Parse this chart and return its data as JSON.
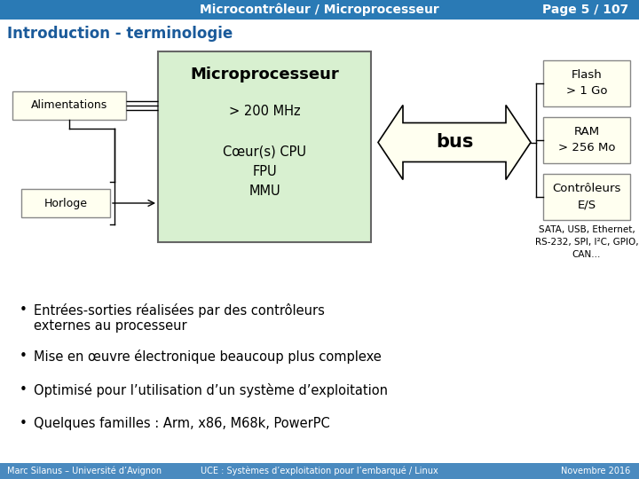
{
  "title": "Microcontrôleur / Microprocesseur",
  "page": "Page 5 / 107",
  "section": "Introduction - terminologie",
  "header_bg": "#2a7ab5",
  "header_fg": "#ffffff",
  "bg_color": "#ffffff",
  "footer_bg": "#4a8abf",
  "footer_fg": "#ffffff",
  "footer_left": "Marc Silanus – Université d’Avignon",
  "footer_mid": "UCE : Systèmes d’exploitation pour l’embarqué / Linux",
  "footer_right": "Novembre 2016",
  "micro_box_color": "#d8f0d0",
  "micro_box_edge": "#666666",
  "micro_title": "Microprocesseur",
  "alim_label": "Alimentations",
  "horloge_label": "Horloge",
  "bus_label": "bus",
  "flash_label": "Flash\n> 1 Go",
  "ram_label": "RAM\n> 256 Mo",
  "ctrl_label": "Contrôleurs\nE/S",
  "side_note": "SATA, USB, Ethernet,\nRS-232, SPI, I²C, GPIO,\nCAN...",
  "bullets": [
    "Entrées-sorties réalisées par des contrôleurs\nexternes au processeur",
    "Mise en œuvre électronique beaucoup plus complexe",
    "Optimisé pour l’utilisation d’un système d’exploitation",
    "Quelques familles : Arm, x86, M68k, PowerPC"
  ],
  "box_fg": "#000000",
  "small_box_color": "#fffff0",
  "small_box_edge": "#888888",
  "bus_color": "#fffff0"
}
